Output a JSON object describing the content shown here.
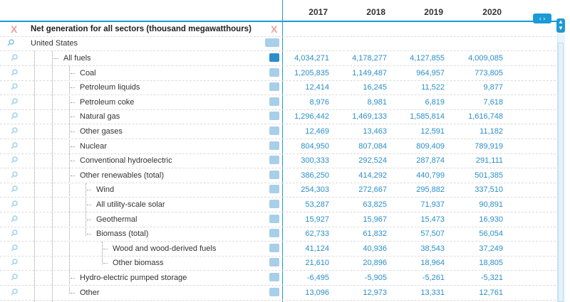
{
  "columns": [
    "2017",
    "2018",
    "2019",
    "2020"
  ],
  "title": "Net generation for all sectors (thousand megawatthours)",
  "region": "United States",
  "nav_label": "‹ ›",
  "rows": [
    {
      "label": "All fuels",
      "values": [
        "4,034,271",
        "4,178,277",
        "4,127,855",
        "4,009,085"
      ]
    },
    {
      "label": "Coal",
      "values": [
        "1,205,835",
        "1,149,487",
        "964,957",
        "773,805"
      ]
    },
    {
      "label": "Petroleum liquids",
      "values": [
        "12,414",
        "16,245",
        "11,522",
        "9,877"
      ]
    },
    {
      "label": "Petroleum coke",
      "values": [
        "8,976",
        "8,981",
        "6,819",
        "7,618"
      ]
    },
    {
      "label": "Natural gas",
      "values": [
        "1,296,442",
        "1,469,133",
        "1,585,814",
        "1,616,748"
      ]
    },
    {
      "label": "Other gases",
      "values": [
        "12,469",
        "13,463",
        "12,591",
        "11,182"
      ]
    },
    {
      "label": "Nuclear",
      "values": [
        "804,950",
        "807,084",
        "809,409",
        "789,919"
      ]
    },
    {
      "label": "Conventional hydroelectric",
      "values": [
        "300,333",
        "292,524",
        "287,874",
        "291,111"
      ]
    },
    {
      "label": "Other renewables (total)",
      "values": [
        "386,250",
        "414,292",
        "440,799",
        "501,385"
      ]
    },
    {
      "label": "Wind",
      "values": [
        "254,303",
        "272,667",
        "295,882",
        "337,510"
      ]
    },
    {
      "label": "All utility-scale solar",
      "values": [
        "53,287",
        "63,825",
        "71,937",
        "90,891"
      ]
    },
    {
      "label": "Geothermal",
      "values": [
        "15,927",
        "15,967",
        "15,473",
        "16,930"
      ]
    },
    {
      "label": "Biomass (total)",
      "values": [
        "62,733",
        "61,832",
        "57,507",
        "56,054"
      ]
    },
    {
      "label": "Wood and wood-derived fuels",
      "values": [
        "41,124",
        "40,936",
        "38,543",
        "37,249"
      ]
    },
    {
      "label": "Other biomass",
      "values": [
        "21,610",
        "20,896",
        "18,964",
        "18,805"
      ]
    },
    {
      "label": "Hydro-electric pumped storage",
      "values": [
        "-6,495",
        "-5,905",
        "-5,261",
        "-5,321"
      ]
    },
    {
      "label": "Other",
      "values": [
        "13,096",
        "12,973",
        "13,331",
        "12,761"
      ]
    }
  ]
}
